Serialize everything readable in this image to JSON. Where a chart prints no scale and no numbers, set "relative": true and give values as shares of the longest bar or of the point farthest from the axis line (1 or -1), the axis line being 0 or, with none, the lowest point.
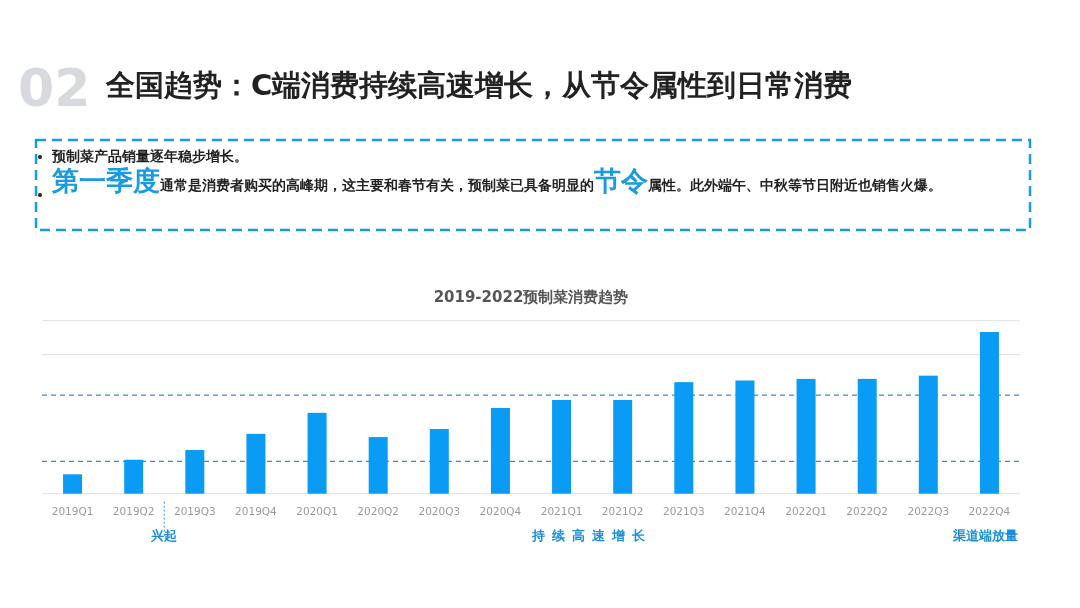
{
  "chart_data": {
    "type": "bar",
    "title": "2019-2022预制菜消费趋势",
    "relative": true,
    "categories": [
      "2019Q1",
      "2019Q2",
      "2019Q3",
      "2019Q4",
      "2020Q1",
      "2020Q2",
      "2020Q3",
      "2020Q4",
      "2021Q1",
      "2021Q2",
      "2021Q3",
      "2021Q4",
      "2022Q1",
      "2022Q2",
      "2022Q3",
      "2022Q4"
    ],
    "values": [
      0.12,
      0.21,
      0.27,
      0.37,
      0.5,
      0.35,
      0.4,
      0.53,
      0.58,
      0.58,
      0.69,
      0.7,
      0.71,
      0.71,
      0.73,
      1
    ],
    "color": "#0a9cf5",
    "ref_lines": [
      {
        "axis": "y",
        "value": 0.2,
        "line_style": "dashed",
        "color": "#3d8cc4"
      },
      {
        "axis": "y",
        "value": 0.61,
        "line_style": "dashed",
        "color": "#3d8cc4"
      },
      {
        "axis": "y",
        "value": 0.86,
        "line_style": "solid",
        "color": "#e6e6e6"
      },
      {
        "axis": "y",
        "value": 1.07,
        "line_style": "solid",
        "color": "#e6e6e6"
      }
    ],
    "annotations": [
      "02",
      "全国趋势：C端消费持续高速增长，从节令属性到日常消费",
      "预制菜产品销量逐年稳步增长。",
      "**第一季度**通常是消费者购买的高峰期，这主要和春节有关，预制菜已具备明显的**节令**属性。此外端午、中秋等节日附近也销售火爆。",
      "兴起",
      "持续高速增长",
      "渠道端放量"
    ]
  }
}
